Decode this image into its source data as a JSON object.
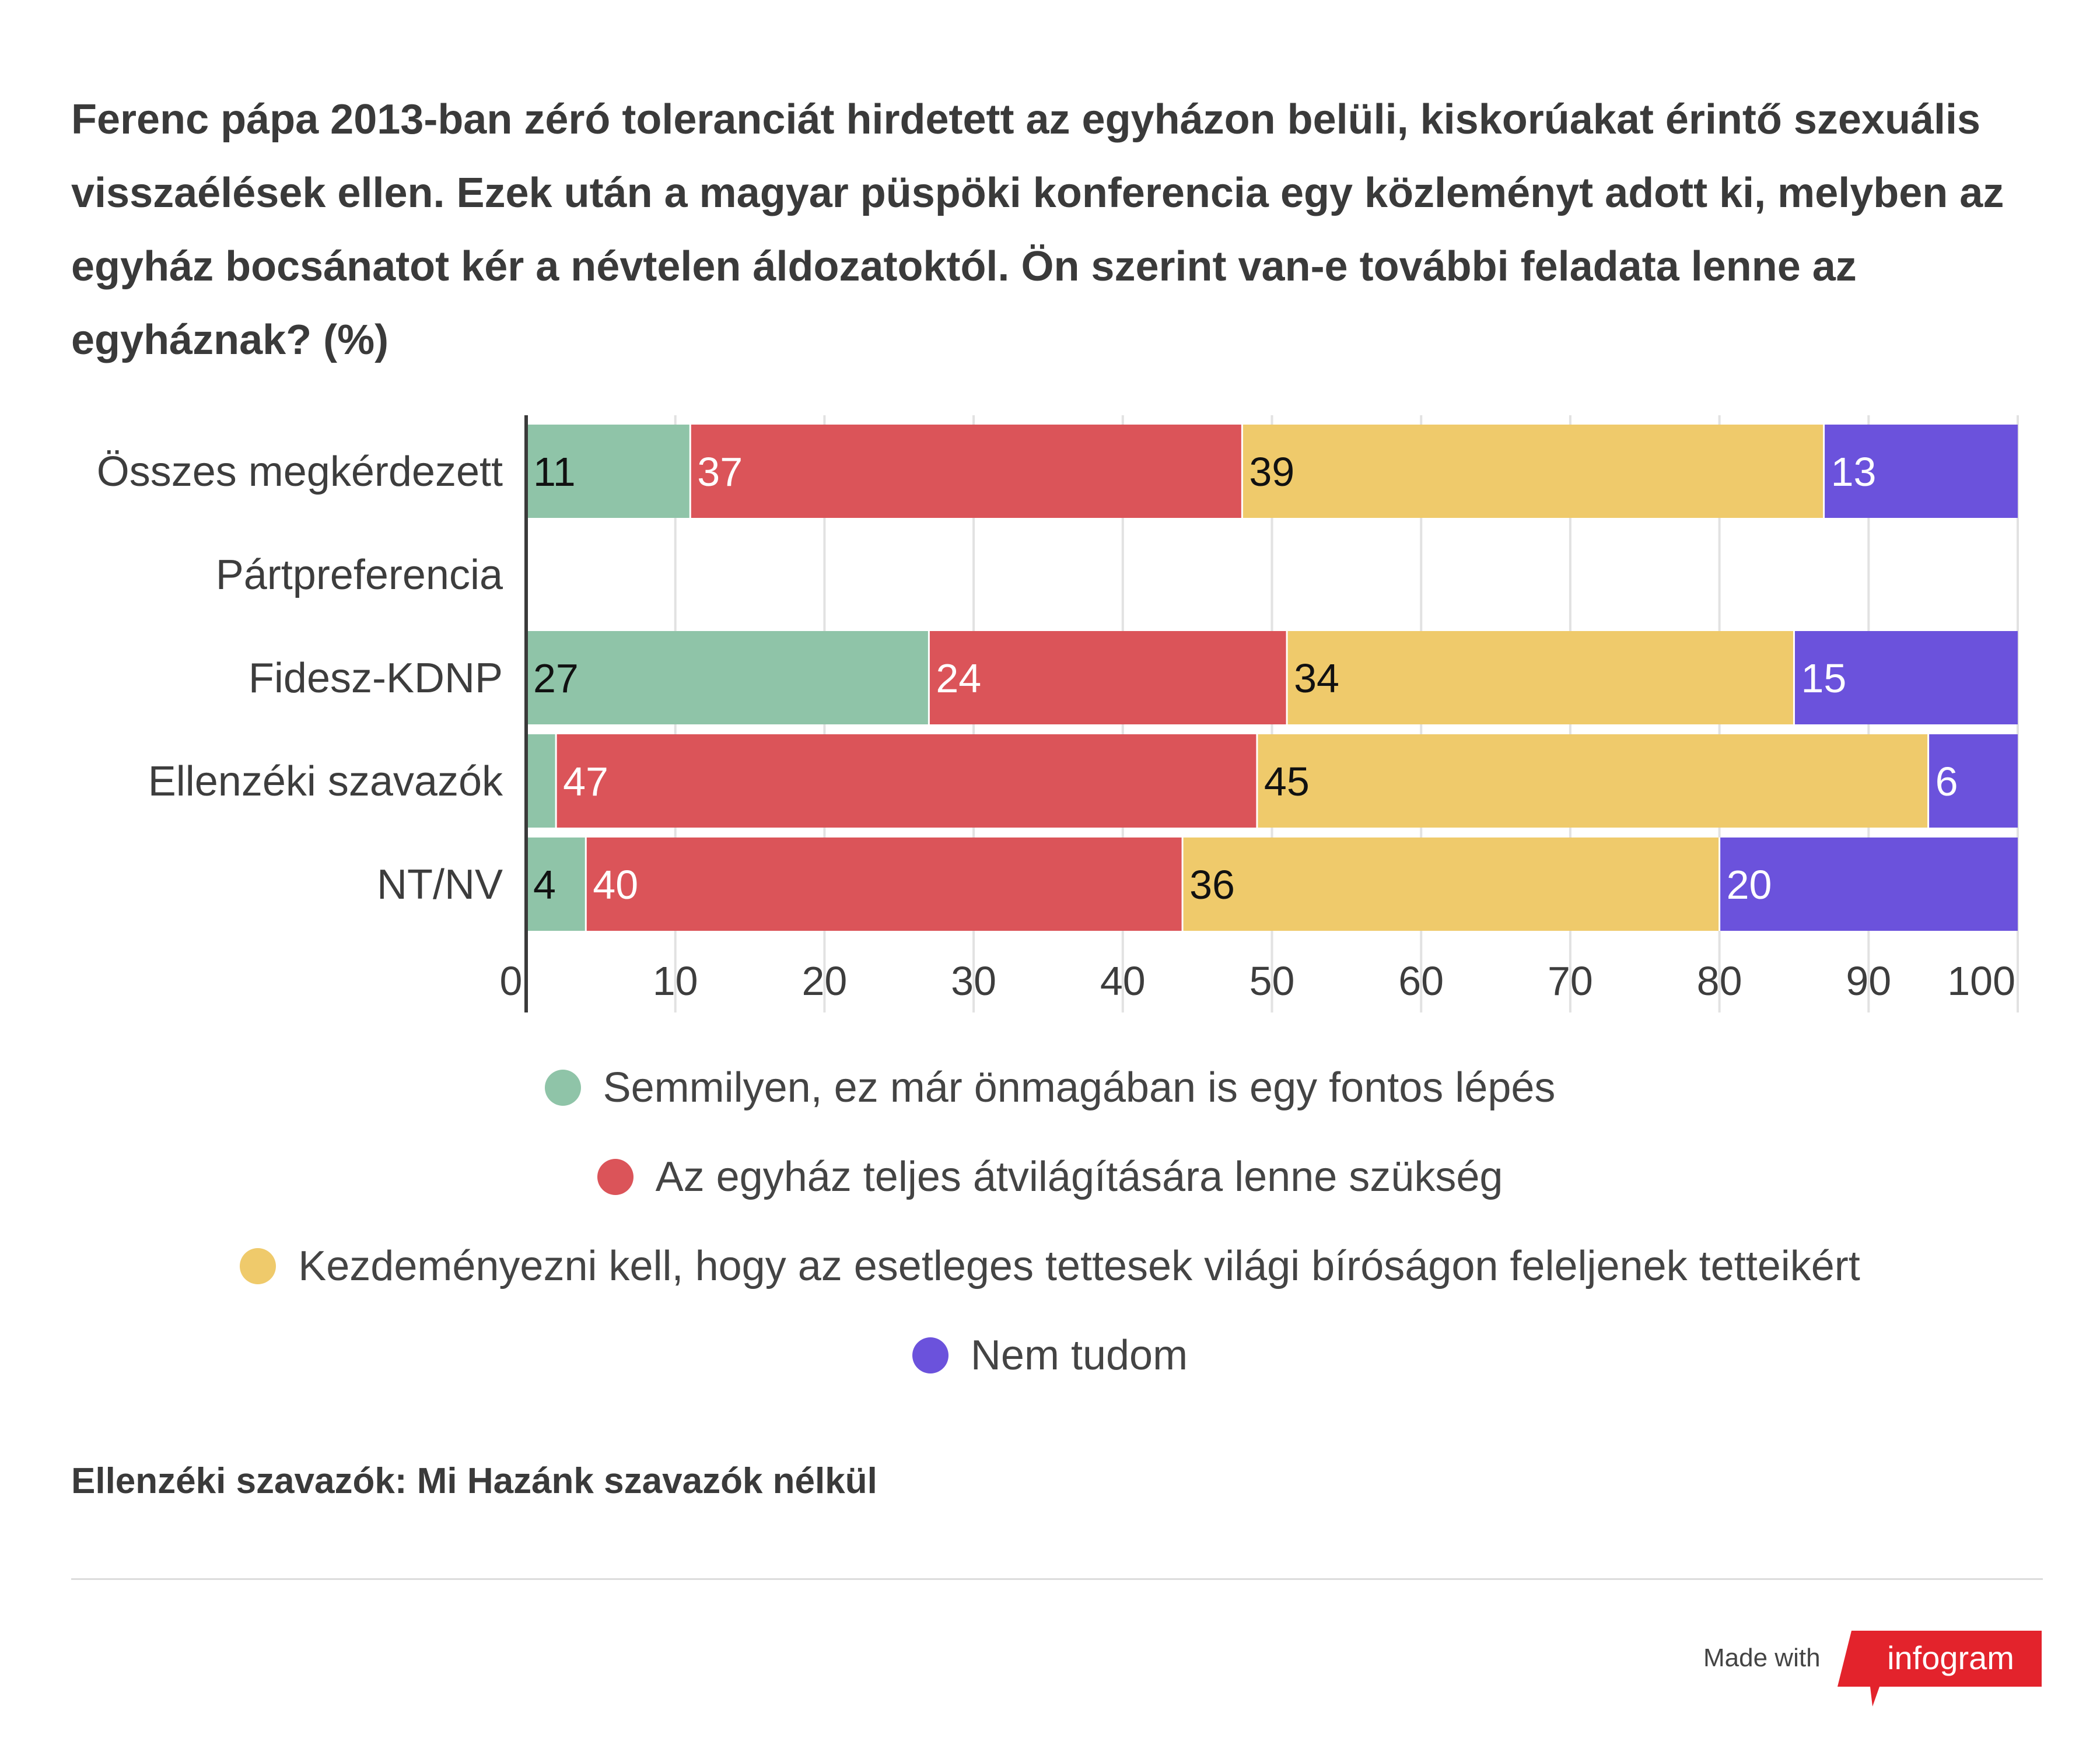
{
  "title": "Ferenc pápa 2013-ban zéró toleranciát hirdetett az egyházon belüli, kiskorúakat érintő szexuális visszaélések ellen. Ezek után a magyar püspöki konferencia egy közleményt adott ki, melyben az egyház bocsánatot kér a névtelen áldozatoktól. Ön szerint van-e további feladata lenne az egyháznak? (%)",
  "chart_data": {
    "type": "bar",
    "orientation": "horizontal",
    "stacked": true,
    "categories": [
      "Összes megkérdezett",
      "Pártpreferencia",
      "Fidesz-KDNP",
      "Ellenzéki szavazók",
      "NT/NV"
    ],
    "series": [
      {
        "name": "Semmilyen, ez már önmagában is egy fontos lépés",
        "color": "#8fc4a8",
        "label_color": "#111111",
        "values": [
          11,
          null,
          27,
          2,
          4
        ],
        "labels": [
          "11",
          "",
          "27",
          "",
          "4"
        ]
      },
      {
        "name": "Az egyház teljes átvilágítására lenne szükség",
        "color": "#db5459",
        "label_color": "#ffffff",
        "values": [
          37,
          null,
          24,
          47,
          40
        ],
        "labels": [
          "37",
          "",
          "24",
          "47",
          "40"
        ]
      },
      {
        "name": "Kezdeményezni kell, hogy az esetleges tettesek világi bíróságon feleljenek tetteikért",
        "color": "#efca6b",
        "label_color": "#111111",
        "values": [
          39,
          null,
          34,
          45,
          36
        ],
        "labels": [
          "39",
          "",
          "34",
          "45",
          "36"
        ]
      },
      {
        "name": "Nem tudom",
        "color": "#6b52dc",
        "label_color": "#ffffff",
        "values": [
          13,
          null,
          15,
          6,
          20
        ],
        "labels": [
          "13",
          "",
          "15",
          "6",
          "20"
        ]
      }
    ],
    "xlim": [
      0,
      100
    ],
    "xticks": [
      0,
      10,
      20,
      30,
      40,
      50,
      60,
      70,
      80,
      90,
      100
    ],
    "grid": true,
    "legend_position": "bottom"
  },
  "footnote": "Ellenzéki szavazók: Mi Hazánk szavazók nélkül",
  "branding": {
    "made_with": "Made with",
    "logo_text": "infogram",
    "logo_color": "#e3232c"
  }
}
